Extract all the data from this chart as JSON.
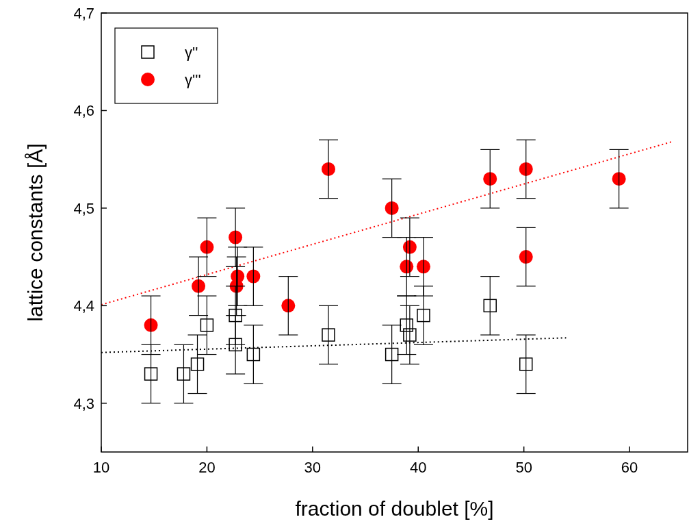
{
  "chart_data": {
    "type": "scatter",
    "xlabel": "fraction of doublet [%]",
    "ylabel": "lattice constants [Å]",
    "xlim": [
      10,
      65.5
    ],
    "xticks": [
      10,
      20,
      30,
      40,
      50,
      60
    ],
    "ylim": [
      4.25,
      4.7
    ],
    "yticks": [
      {
        "value": 4.3,
        "label": "4,3"
      },
      {
        "value": 4.4,
        "label": "4,4"
      },
      {
        "value": 4.5,
        "label": "4,5"
      },
      {
        "value": 4.6,
        "label": "4,6"
      },
      {
        "value": 4.7,
        "label": "4,7"
      }
    ],
    "grid": false,
    "legend": "top left",
    "series": [
      {
        "name": "γ''",
        "marker": "square",
        "color": "#000000",
        "x": [
          14.7,
          17.8,
          19.1,
          20,
          22.7,
          22.7,
          24.4,
          31.5,
          37.5,
          38.9,
          39.2,
          40.5,
          46.8,
          50.2
        ],
        "values": [
          4.33,
          4.33,
          4.34,
          4.38,
          4.39,
          4.36,
          4.35,
          4.37,
          4.35,
          4.38,
          4.37,
          4.39,
          4.4,
          4.34
        ],
        "errors": [
          0.03,
          0.03,
          0.03,
          0.03,
          0.03,
          0.03,
          0.03,
          0.03,
          0.03,
          0.03,
          0.03,
          0.03,
          0.03,
          0.03
        ]
      },
      {
        "name": "γ'''",
        "marker": "circle",
        "color": "#ff0000",
        "x": [
          14.7,
          19.2,
          20,
          22.7,
          22.8,
          22.9,
          24.4,
          27.7,
          31.5,
          37.5,
          38.9,
          39.2,
          40.5,
          46.8,
          50.2,
          50.2,
          59
        ],
        "values": [
          4.38,
          4.42,
          4.46,
          4.47,
          4.42,
          4.43,
          4.43,
          4.4,
          4.54,
          4.5,
          4.44,
          4.46,
          4.44,
          4.53,
          4.54,
          4.45,
          4.53
        ],
        "errors": [
          0.03,
          0.03,
          0.03,
          0.03,
          0.03,
          0.03,
          0.03,
          0.03,
          0.03,
          0.03,
          0.03,
          0.03,
          0.03,
          0.03,
          0.03,
          0.03,
          0.03
        ]
      },
      {
        "type": "line",
        "line_style": "dotted",
        "color": "#000000",
        "x": [
          10,
          54
        ],
        "values": [
          4.352,
          4.367
        ]
      },
      {
        "type": "line",
        "line_style": "dotted",
        "color": "#ff0000",
        "x": [
          10,
          64
        ],
        "values": [
          4.401,
          4.568
        ]
      }
    ]
  }
}
